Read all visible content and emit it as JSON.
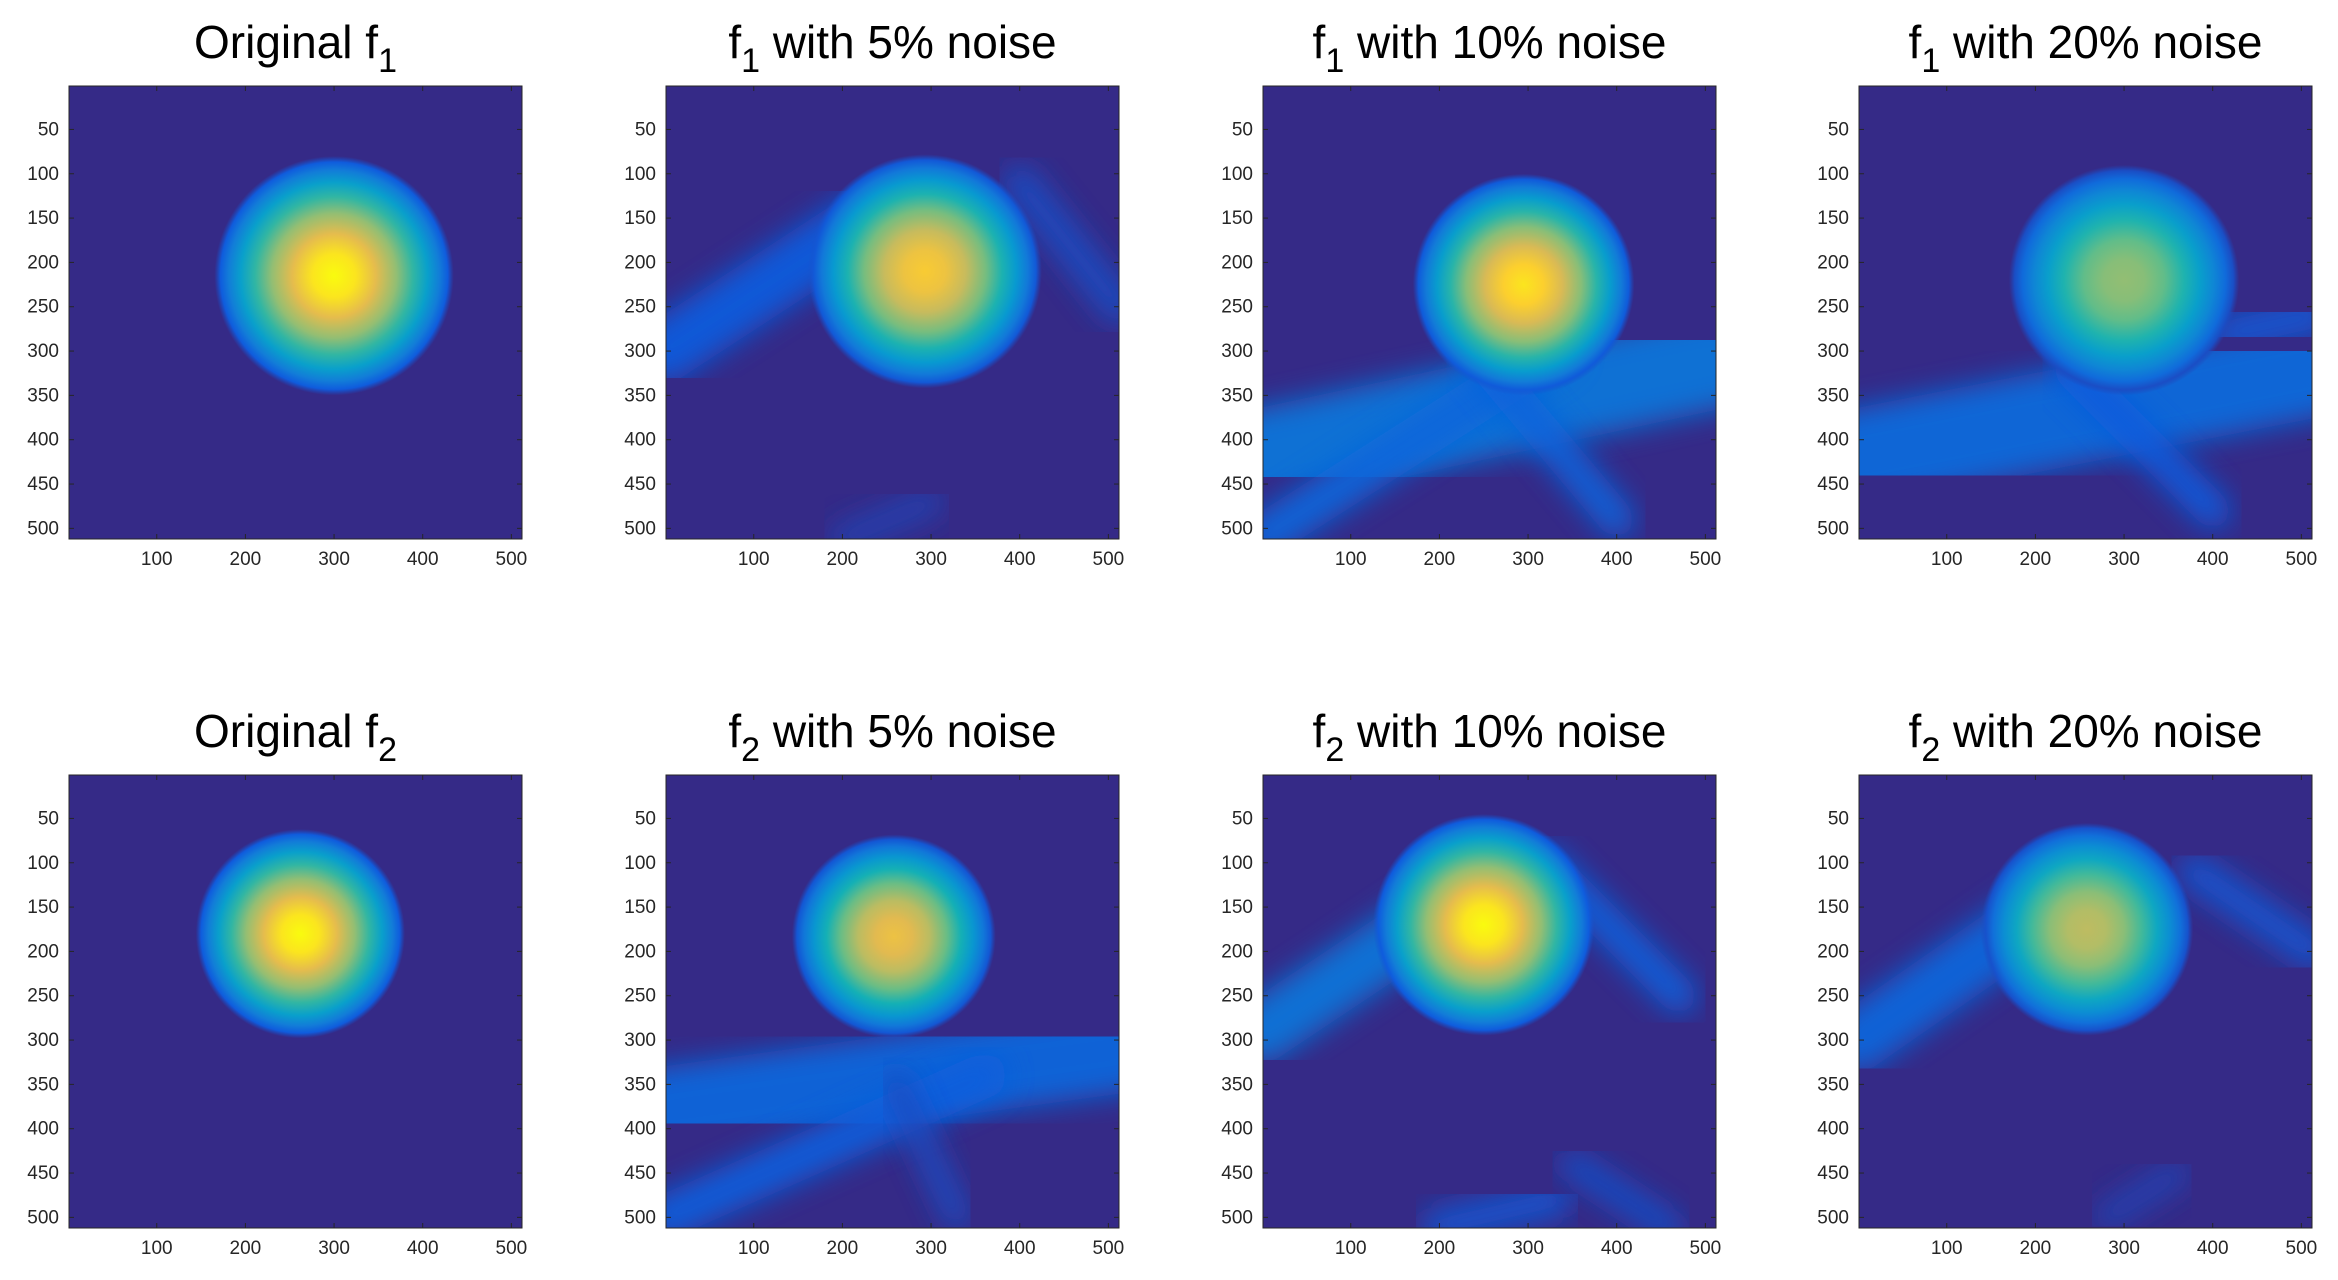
{
  "chart_data": [
    {
      "type": "heatmap",
      "title": "Original f",
      "title_subscript": "1",
      "xlim": [
        1,
        512
      ],
      "ylim": [
        1,
        512
      ],
      "xticks": [
        100,
        200,
        300,
        400,
        500
      ],
      "yticks": [
        50,
        100,
        150,
        200,
        250,
        300,
        350,
        400,
        450,
        500
      ],
      "y_direction": "reverse",
      "colormap": "parula",
      "blob": {
        "cx": 300,
        "cy": 215,
        "r": 135,
        "peak": 1.0
      },
      "streaks": []
    },
    {
      "type": "heatmap",
      "title": "f",
      "title_subscript": "1",
      "title_suffix": " with 5% noise",
      "xlim": [
        1,
        512
      ],
      "ylim": [
        1,
        512
      ],
      "xticks": [
        100,
        200,
        300,
        400,
        500
      ],
      "yticks": [
        50,
        100,
        150,
        200,
        250,
        300,
        350,
        400,
        450,
        500
      ],
      "y_direction": "reverse",
      "colormap": "parula",
      "blob": {
        "cx": 293,
        "cy": 210,
        "r": 132,
        "peak": 0.93
      },
      "streaks": [
        {
          "x1": 0,
          "y1": 300,
          "x2": 230,
          "y2": 150,
          "w": 70,
          "v": 0.12
        },
        {
          "x1": 400,
          "y1": 110,
          "x2": 512,
          "y2": 250,
          "w": 40,
          "v": 0.08
        },
        {
          "x1": 200,
          "y1": 512,
          "x2": 300,
          "y2": 470,
          "w": 30,
          "v": 0.06
        }
      ]
    },
    {
      "type": "heatmap",
      "title": "f",
      "title_subscript": "1",
      "title_suffix": " with 10% noise",
      "xlim": [
        1,
        512
      ],
      "ylim": [
        1,
        512
      ],
      "xticks": [
        100,
        200,
        300,
        400,
        500
      ],
      "yticks": [
        50,
        100,
        150,
        200,
        250,
        300,
        350,
        400,
        450,
        500
      ],
      "y_direction": "reverse",
      "colormap": "parula",
      "blob": {
        "cx": 295,
        "cy": 225,
        "r": 125,
        "peak": 0.97
      },
      "streaks": [
        {
          "x1": 0,
          "y1": 420,
          "x2": 512,
          "y2": 310,
          "w": 110,
          "v": 0.22
        },
        {
          "x1": 0,
          "y1": 510,
          "x2": 330,
          "y2": 300,
          "w": 50,
          "v": 0.16
        },
        {
          "x1": 240,
          "y1": 300,
          "x2": 400,
          "y2": 490,
          "w": 40,
          "v": 0.15
        }
      ]
    },
    {
      "type": "heatmap",
      "title": "f",
      "title_subscript": "1",
      "title_suffix": " with 20% noise",
      "xlim": [
        1,
        512
      ],
      "ylim": [
        1,
        512
      ],
      "xticks": [
        100,
        200,
        300,
        400,
        500
      ],
      "yticks": [
        50,
        100,
        150,
        200,
        250,
        300,
        350,
        400,
        450,
        500
      ],
      "y_direction": "reverse",
      "colormap": "parula",
      "blob": {
        "cx": 300,
        "cy": 220,
        "r": 130,
        "peak": 0.72
      },
      "streaks": [
        {
          "x1": 0,
          "y1": 420,
          "x2": 512,
          "y2": 320,
          "w": 110,
          "v": 0.18
        },
        {
          "x1": 240,
          "y1": 320,
          "x2": 400,
          "y2": 480,
          "w": 40,
          "v": 0.12
        },
        {
          "x1": 420,
          "y1": 280,
          "x2": 512,
          "y2": 260,
          "w": 50,
          "v": 0.1
        }
      ]
    },
    {
      "type": "heatmap",
      "title": "Original f",
      "title_subscript": "2",
      "xlim": [
        1,
        512
      ],
      "ylim": [
        1,
        512
      ],
      "xticks": [
        100,
        200,
        300,
        400,
        500
      ],
      "yticks": [
        50,
        100,
        150,
        200,
        250,
        300,
        350,
        400,
        450,
        500
      ],
      "y_direction": "reverse",
      "colormap": "parula",
      "blob": {
        "cx": 262,
        "cy": 180,
        "r": 118,
        "peak": 1.0
      },
      "streaks": []
    },
    {
      "type": "heatmap",
      "title": "f",
      "title_subscript": "2",
      "title_suffix": " with 5% noise",
      "xlim": [
        1,
        512
      ],
      "ylim": [
        1,
        512
      ],
      "xticks": [
        100,
        200,
        300,
        400,
        500
      ],
      "yticks": [
        50,
        100,
        150,
        200,
        250,
        300,
        350,
        400,
        450,
        500
      ],
      "y_direction": "reverse",
      "colormap": "parula",
      "blob": {
        "cx": 258,
        "cy": 183,
        "r": 115,
        "peak": 0.9
      },
      "streaks": [
        {
          "x1": 0,
          "y1": 380,
          "x2": 512,
          "y2": 310,
          "w": 100,
          "v": 0.16
        },
        {
          "x1": 0,
          "y1": 500,
          "x2": 360,
          "y2": 340,
          "w": 50,
          "v": 0.13
        },
        {
          "x1": 260,
          "y1": 350,
          "x2": 330,
          "y2": 500,
          "w": 30,
          "v": 0.08
        }
      ]
    },
    {
      "type": "heatmap",
      "title": "f",
      "title_subscript": "2",
      "title_suffix": " with 10% noise",
      "xlim": [
        1,
        512
      ],
      "ylim": [
        1,
        512
      ],
      "xticks": [
        100,
        200,
        300,
        400,
        500
      ],
      "yticks": [
        50,
        100,
        150,
        200,
        250,
        300,
        350,
        400,
        450,
        500
      ],
      "y_direction": "reverse",
      "colormap": "parula",
      "blob": {
        "cx": 250,
        "cy": 170,
        "r": 125,
        "peak": 1.0
      },
      "streaks": [
        {
          "x1": 0,
          "y1": 290,
          "x2": 240,
          "y2": 130,
          "w": 70,
          "v": 0.22
        },
        {
          "x1": 280,
          "y1": 90,
          "x2": 512,
          "y2": 90,
          "w": 50,
          "v": 0.2
        },
        {
          "x1": 320,
          "y1": 100,
          "x2": 470,
          "y2": 250,
          "w": 40,
          "v": 0.14
        },
        {
          "x1": 200,
          "y1": 510,
          "x2": 330,
          "y2": 480,
          "w": 40,
          "v": 0.1
        },
        {
          "x1": 350,
          "y1": 440,
          "x2": 460,
          "y2": 512,
          "w": 30,
          "v": 0.09
        }
      ]
    },
    {
      "type": "heatmap",
      "title": "f",
      "title_subscript": "2",
      "title_suffix": " with 20% noise",
      "xlim": [
        1,
        512
      ],
      "ylim": [
        1,
        512
      ],
      "xticks": [
        100,
        200,
        300,
        400,
        500
      ],
      "yticks": [
        50,
        100,
        150,
        200,
        250,
        300,
        350,
        400,
        450,
        500
      ],
      "y_direction": "reverse",
      "colormap": "parula",
      "blob": {
        "cx": 258,
        "cy": 175,
        "r": 120,
        "peak": 0.8
      },
      "streaks": [
        {
          "x1": 0,
          "y1": 300,
          "x2": 230,
          "y2": 140,
          "w": 70,
          "v": 0.16
        },
        {
          "x1": 300,
          "y1": 90,
          "x2": 512,
          "y2": 90,
          "w": 50,
          "v": 0.15
        },
        {
          "x1": 380,
          "y1": 110,
          "x2": 512,
          "y2": 200,
          "w": 40,
          "v": 0.1
        },
        {
          "x1": 280,
          "y1": 500,
          "x2": 360,
          "y2": 450,
          "w": 30,
          "v": 0.06
        }
      ]
    }
  ]
}
